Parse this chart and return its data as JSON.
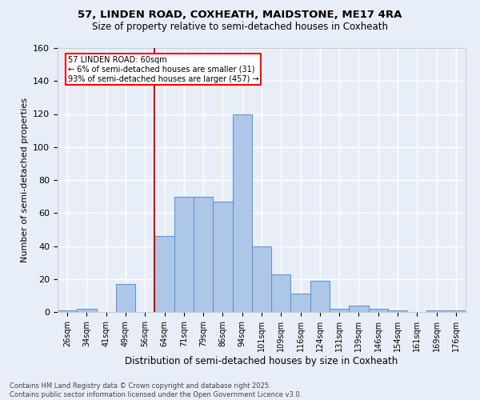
{
  "title1": "57, LINDEN ROAD, COXHEATH, MAIDSTONE, ME17 4RA",
  "title2": "Size of property relative to semi-detached houses in Coxheath",
  "xlabel": "Distribution of semi-detached houses by size in Coxheath",
  "ylabel": "Number of semi-detached properties",
  "footnote1": "Contains HM Land Registry data © Crown copyright and database right 2025.",
  "footnote2": "Contains public sector information licensed under the Open Government Licence v3.0.",
  "bin_labels": [
    "26sqm",
    "34sqm",
    "41sqm",
    "49sqm",
    "56sqm",
    "64sqm",
    "71sqm",
    "79sqm",
    "86sqm",
    "94sqm",
    "101sqm",
    "109sqm",
    "116sqm",
    "124sqm",
    "131sqm",
    "139sqm",
    "146sqm",
    "154sqm",
    "161sqm",
    "169sqm",
    "176sqm"
  ],
  "bin_values": [
    1,
    2,
    0,
    17,
    0,
    46,
    70,
    70,
    67,
    120,
    40,
    23,
    11,
    19,
    2,
    4,
    2,
    1,
    0,
    1,
    1
  ],
  "bar_color": "#aec6e8",
  "bar_edge_color": "#5b9bd5",
  "vline_color": "#cc0000",
  "annotation_text": "57 LINDEN ROAD: 60sqm\n← 6% of semi-detached houses are smaller (31)\n93% of semi-detached houses are larger (457) →",
  "ylim": [
    0,
    160
  ],
  "yticks": [
    0,
    20,
    40,
    60,
    80,
    100,
    120,
    140,
    160
  ],
  "bg_color": "#e8eef8",
  "grid_color": "#ffffff"
}
